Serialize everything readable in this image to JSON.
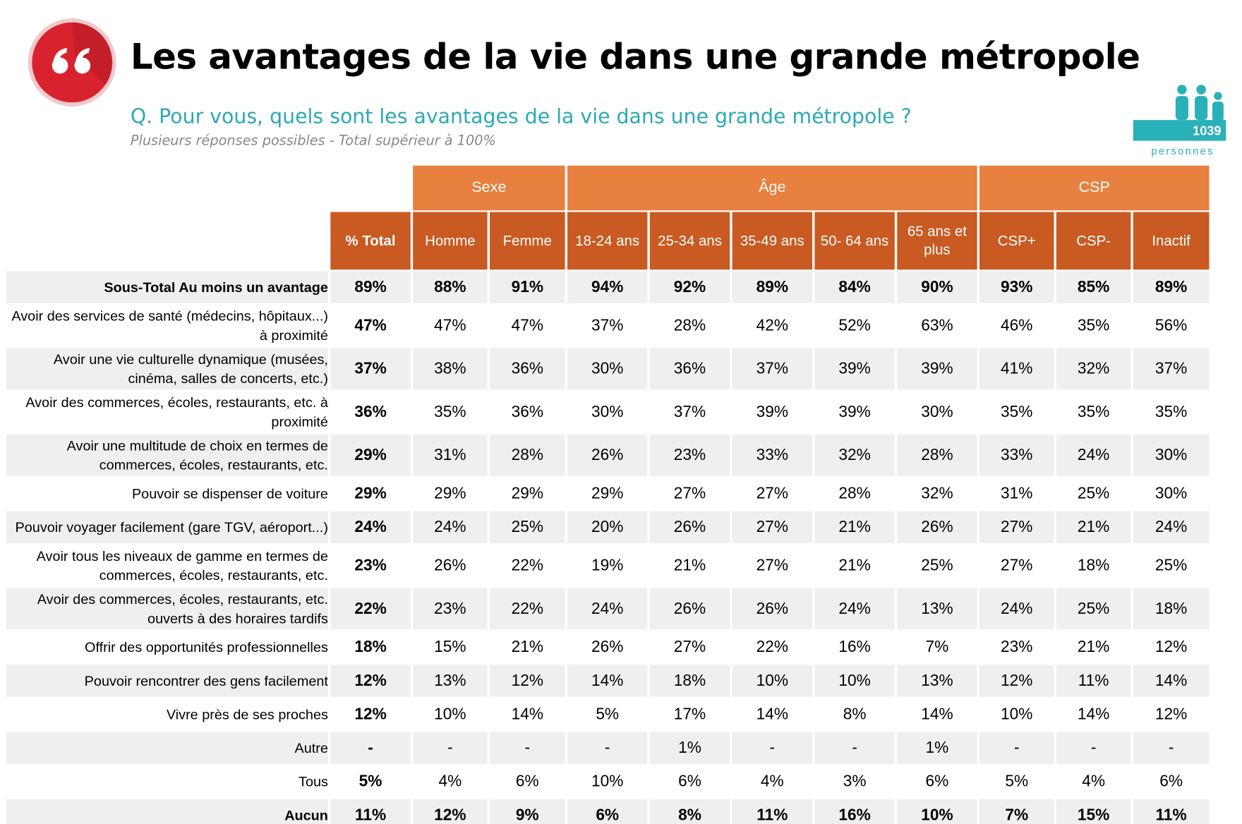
{
  "header": {
    "title": "Les avantages de la vie dans une grande métropole",
    "question": "Q. Pour vous, quels sont les avantages de la vie dans une grande métropole ?",
    "note": "Plusieurs réponses possibles - Total supérieur à 100%",
    "respondents": {
      "count": "1039",
      "label": "personnes"
    }
  },
  "table": {
    "groups": [
      "Sexe",
      "Âge",
      "CSP"
    ],
    "columns": [
      "% Total",
      "Homme",
      "Femme",
      "18-24 ans",
      "25-34 ans",
      "35-49 ans",
      "50- 64 ans",
      "65 ans et plus",
      "CSP+",
      "CSP-",
      "Inactif"
    ],
    "rows": [
      {
        "label": "Sous-Total Au moins un avantage",
        "values": [
          "89%",
          "88%",
          "91%",
          "94%",
          "92%",
          "89%",
          "84%",
          "90%",
          "93%",
          "85%",
          "89%"
        ]
      },
      {
        "label": "Avoir des services de santé (médecins, hôpitaux...) à proximité",
        "values": [
          "47%",
          "47%",
          "47%",
          "37%",
          "28%",
          "42%",
          "52%",
          "63%",
          "46%",
          "35%",
          "56%"
        ]
      },
      {
        "label": "Avoir une vie culturelle dynamique (musées, cinéma, salles de concerts, etc.)",
        "values": [
          "37%",
          "38%",
          "36%",
          "30%",
          "36%",
          "37%",
          "39%",
          "39%",
          "41%",
          "32%",
          "37%"
        ]
      },
      {
        "label": "Avoir des commerces, écoles, restaurants, etc. à proximité",
        "values": [
          "36%",
          "35%",
          "36%",
          "30%",
          "37%",
          "39%",
          "39%",
          "30%",
          "35%",
          "35%",
          "35%"
        ]
      },
      {
        "label": "Avoir une multitude de choix en termes de commerces, écoles, restaurants, etc.",
        "values": [
          "29%",
          "31%",
          "28%",
          "26%",
          "23%",
          "33%",
          "32%",
          "28%",
          "33%",
          "24%",
          "30%"
        ]
      },
      {
        "label": "Pouvoir se dispenser de voiture",
        "values": [
          "29%",
          "29%",
          "29%",
          "29%",
          "27%",
          "27%",
          "28%",
          "32%",
          "31%",
          "25%",
          "30%"
        ]
      },
      {
        "label": "Pouvoir voyager facilement (gare TGV, aéroport...)",
        "values": [
          "24%",
          "24%",
          "25%",
          "20%",
          "26%",
          "27%",
          "21%",
          "26%",
          "27%",
          "21%",
          "24%"
        ]
      },
      {
        "label": "Avoir tous les niveaux de gamme en termes de commerces, écoles, restaurants, etc.",
        "values": [
          "23%",
          "26%",
          "22%",
          "19%",
          "21%",
          "27%",
          "21%",
          "25%",
          "27%",
          "18%",
          "25%"
        ]
      },
      {
        "label": "Avoir des commerces, écoles, restaurants, etc. ouverts à des horaires tardifs",
        "values": [
          "22%",
          "23%",
          "22%",
          "24%",
          "26%",
          "26%",
          "24%",
          "13%",
          "24%",
          "25%",
          "18%"
        ]
      },
      {
        "label": "Offrir des opportunités professionnelles",
        "values": [
          "18%",
          "15%",
          "21%",
          "26%",
          "27%",
          "22%",
          "16%",
          "7%",
          "23%",
          "21%",
          "12%"
        ]
      },
      {
        "label": "Pouvoir rencontrer des gens facilement",
        "values": [
          "12%",
          "13%",
          "12%",
          "14%",
          "18%",
          "10%",
          "10%",
          "13%",
          "12%",
          "11%",
          "14%"
        ]
      },
      {
        "label": "Vivre près de ses proches",
        "values": [
          "12%",
          "10%",
          "14%",
          "5%",
          "17%",
          "14%",
          "8%",
          "14%",
          "10%",
          "14%",
          "12%"
        ]
      },
      {
        "label": "Autre",
        "values": [
          "-",
          "-",
          "-",
          "-",
          "1%",
          "-",
          "-",
          "1%",
          "-",
          "-",
          "-"
        ]
      },
      {
        "label": "Tous",
        "values": [
          "5%",
          "4%",
          "6%",
          "10%",
          "6%",
          "4%",
          "3%",
          "6%",
          "5%",
          "4%",
          "6%"
        ]
      },
      {
        "label": "Aucun",
        "values": [
          "11%",
          "12%",
          "9%",
          "6%",
          "8%",
          "11%",
          "16%",
          "10%",
          "7%",
          "15%",
          "11%"
        ]
      }
    ]
  }
}
